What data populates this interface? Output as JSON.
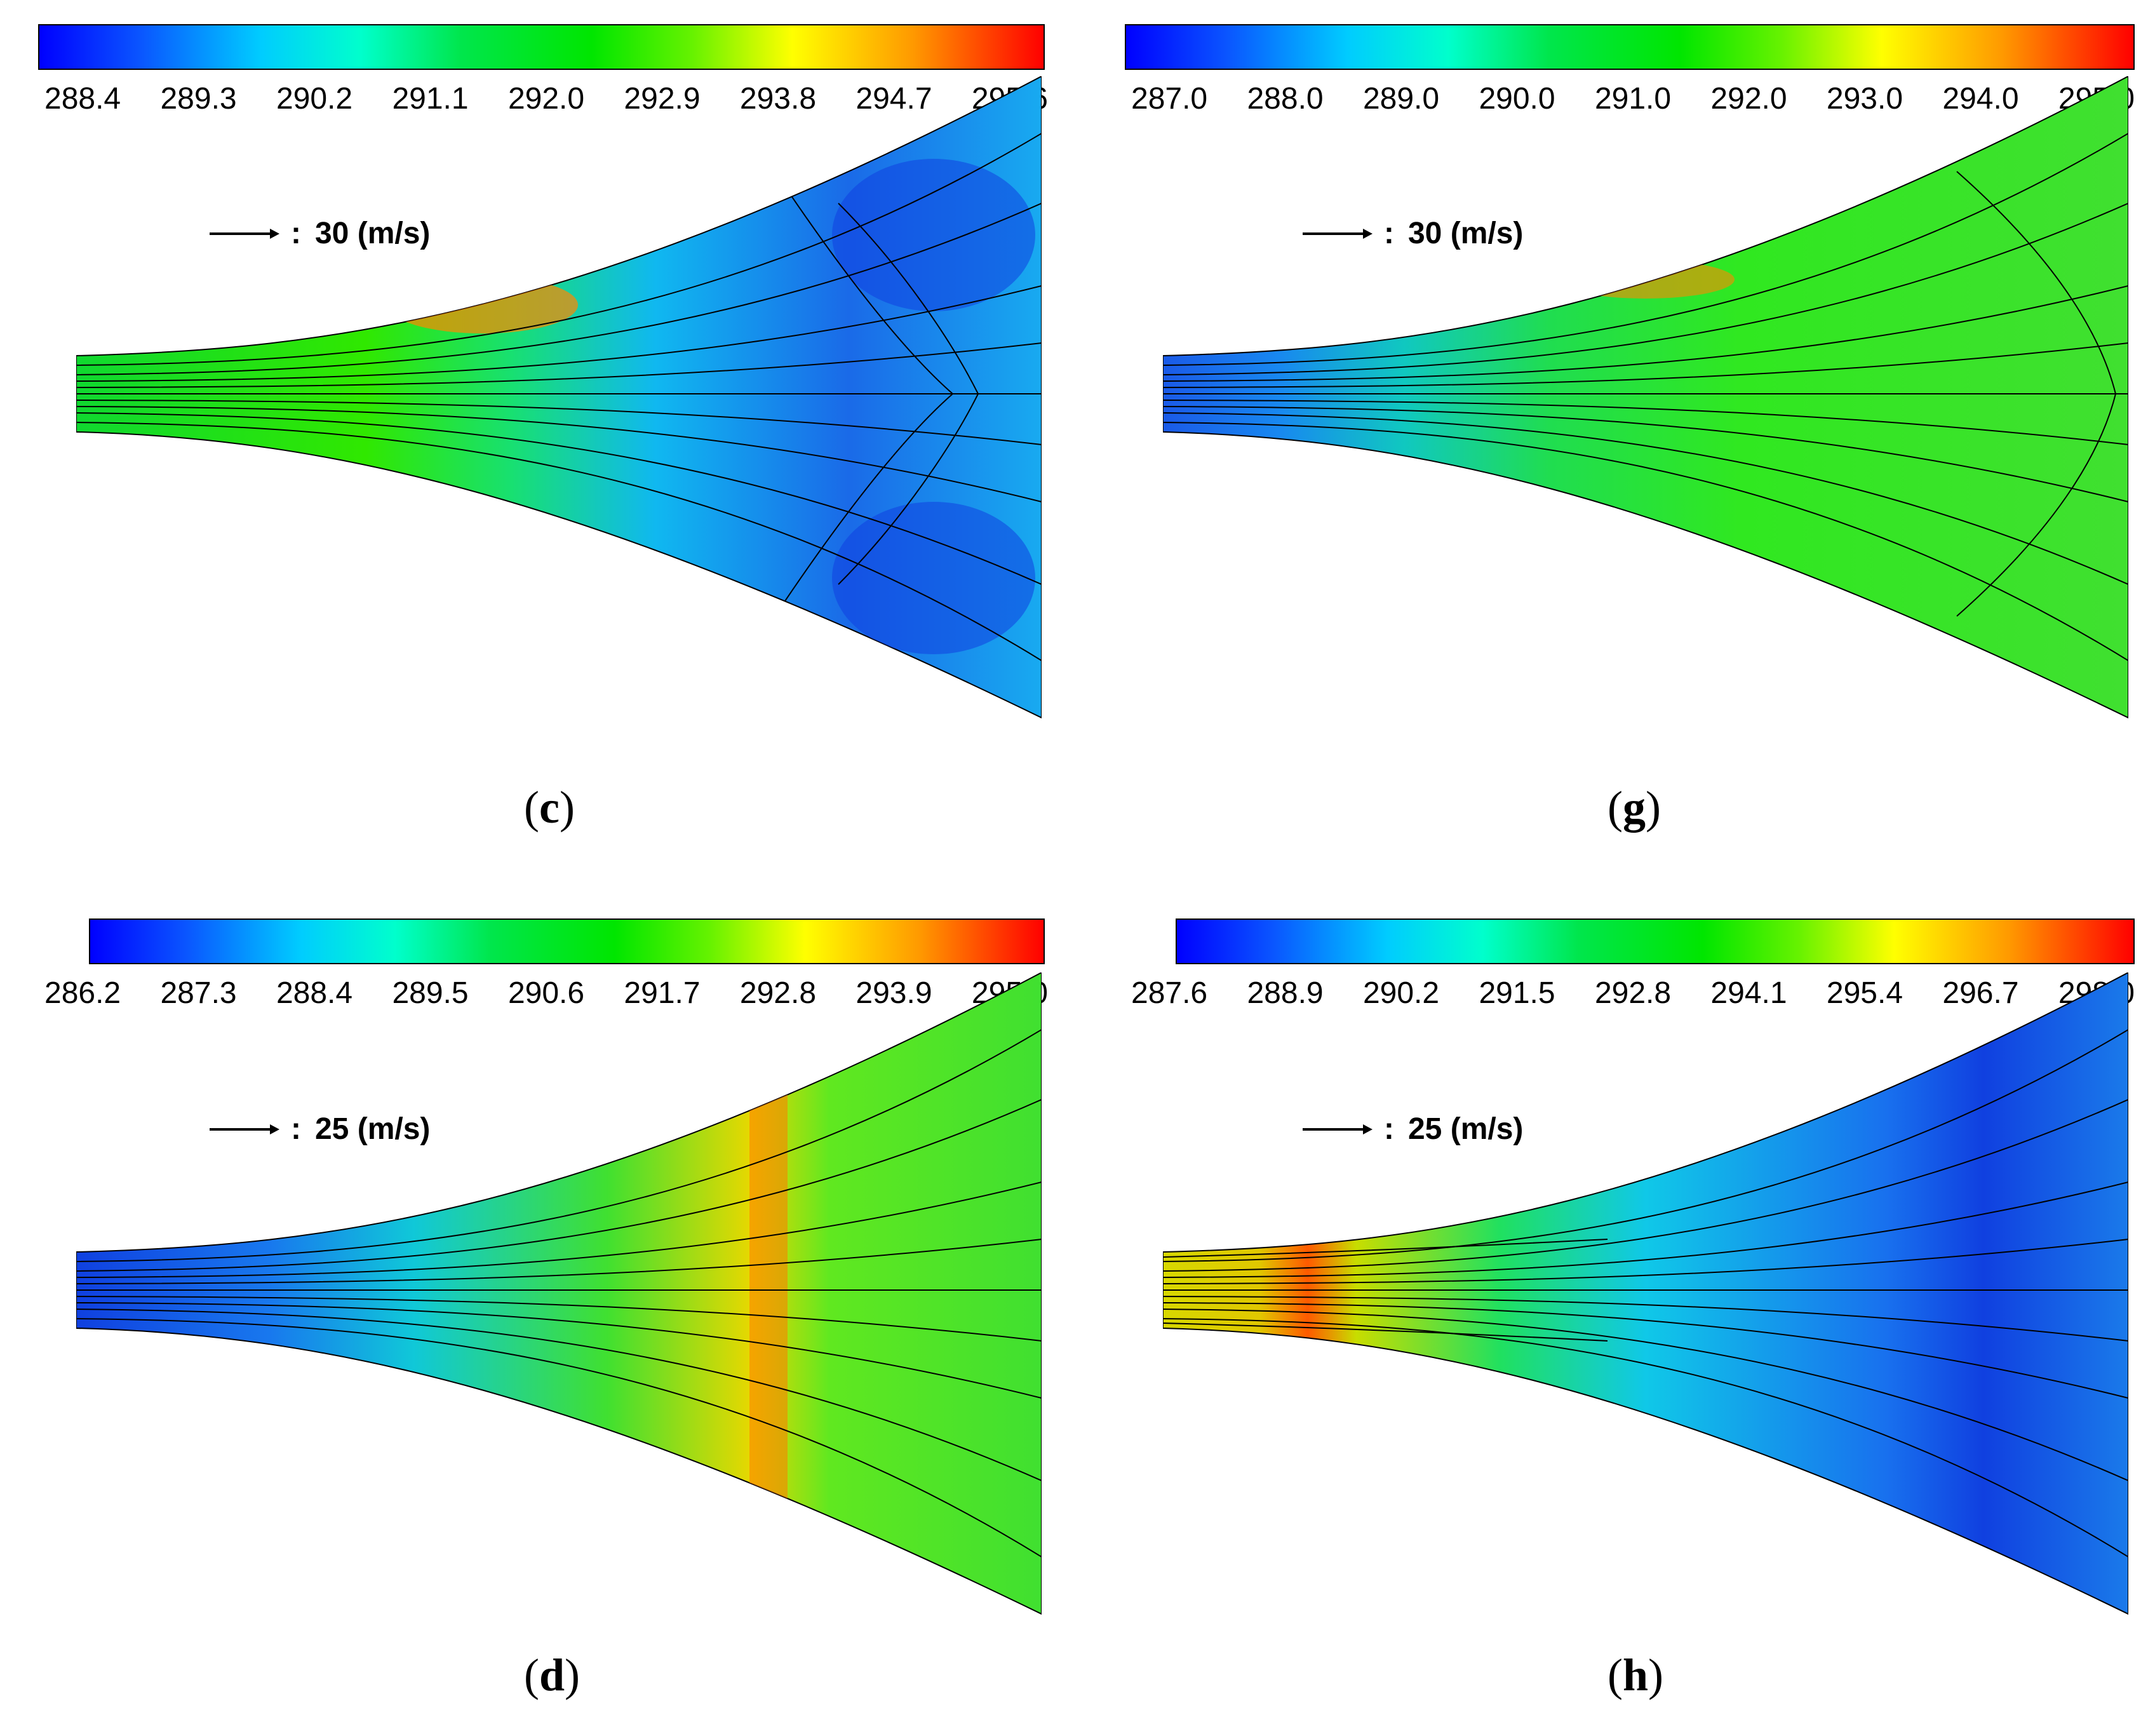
{
  "panels": [
    {
      "id": "c",
      "label": "c",
      "colorbar_ticks": [
        "288.4",
        "289.3",
        "290.2",
        "291.1",
        "292.0",
        "292.9",
        "293.8",
        "294.7",
        "295.6"
      ],
      "vector_scale": "30 (m/s)"
    },
    {
      "id": "g",
      "label": "g",
      "colorbar_ticks": [
        "287.0",
        "288.0",
        "289.0",
        "290.0",
        "291.0",
        "292.0",
        "293.0",
        "294.0",
        "295.0"
      ],
      "vector_scale": "30 (m/s)"
    },
    {
      "id": "d",
      "label": "d",
      "colorbar_ticks": [
        "286.2",
        "287.3",
        "288.4",
        "289.5",
        "290.6",
        "291.7",
        "292.8",
        "293.9",
        "295.0"
      ],
      "vector_scale": "25 (m/s)"
    },
    {
      "id": "h",
      "label": "h",
      "colorbar_ticks": [
        "287.6",
        "288.9",
        "290.2",
        "291.5",
        "292.8",
        "294.1",
        "295.4",
        "296.7",
        "298.0"
      ],
      "vector_scale": "25 (m/s)"
    }
  ],
  "colors": {
    "scale": [
      "#0000ff",
      "#0066ff",
      "#00ccff",
      "#00ffcc",
      "#00e600",
      "#33ee00",
      "#ccff00",
      "#ffcc00",
      "#ff6600",
      "#ff0000"
    ]
  }
}
